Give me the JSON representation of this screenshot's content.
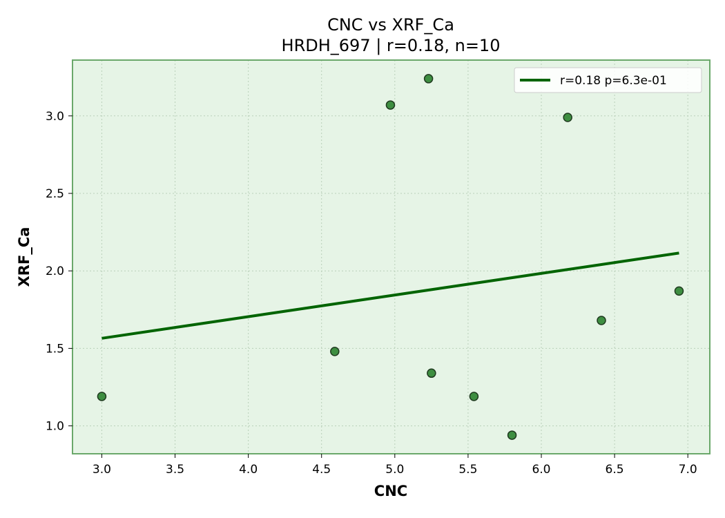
{
  "chart_data": {
    "type": "scatter",
    "title": "CNC vs XRF_Ca",
    "subtitle": "HRDH_697 | r=0.18, n=10",
    "xlabel": "CNC",
    "ylabel": "XRF_Ca",
    "xlim": [
      2.8,
      7.15
    ],
    "ylim": [
      0.82,
      3.36
    ],
    "x_ticks": [
      3.0,
      3.5,
      4.0,
      4.5,
      5.0,
      5.5,
      6.0,
      6.5,
      7.0
    ],
    "x_tick_labels": [
      "3.0",
      "3.5",
      "4.0",
      "4.5",
      "5.0",
      "5.5",
      "6.0",
      "6.5",
      "7.0"
    ],
    "y_ticks": [
      1.0,
      1.5,
      2.0,
      2.5,
      3.0
    ],
    "y_tick_labels": [
      "1.0",
      "1.5",
      "2.0",
      "2.5",
      "3.0"
    ],
    "grid": true,
    "legend_position": "top-right",
    "points": [
      {
        "x": 3.0,
        "y": 1.19
      },
      {
        "x": 4.59,
        "y": 1.48
      },
      {
        "x": 4.97,
        "y": 3.07
      },
      {
        "x": 5.23,
        "y": 3.24
      },
      {
        "x": 5.25,
        "y": 1.34
      },
      {
        "x": 5.54,
        "y": 1.19
      },
      {
        "x": 5.8,
        "y": 0.94
      },
      {
        "x": 6.18,
        "y": 2.99
      },
      {
        "x": 6.41,
        "y": 1.68
      },
      {
        "x": 6.94,
        "y": 1.87
      }
    ],
    "fit_line": {
      "name": "r=0.18  p=6.3e-01",
      "x": [
        3.0,
        6.94
      ],
      "y": [
        1.565,
        2.115
      ]
    },
    "colors": {
      "background": "#e6f4e6",
      "frame": "#6aa86a",
      "point_fill": "#3e8e41",
      "point_edge": "#1f3a1f",
      "fit_line": "#006400",
      "grid": "#b9cfb9"
    }
  }
}
